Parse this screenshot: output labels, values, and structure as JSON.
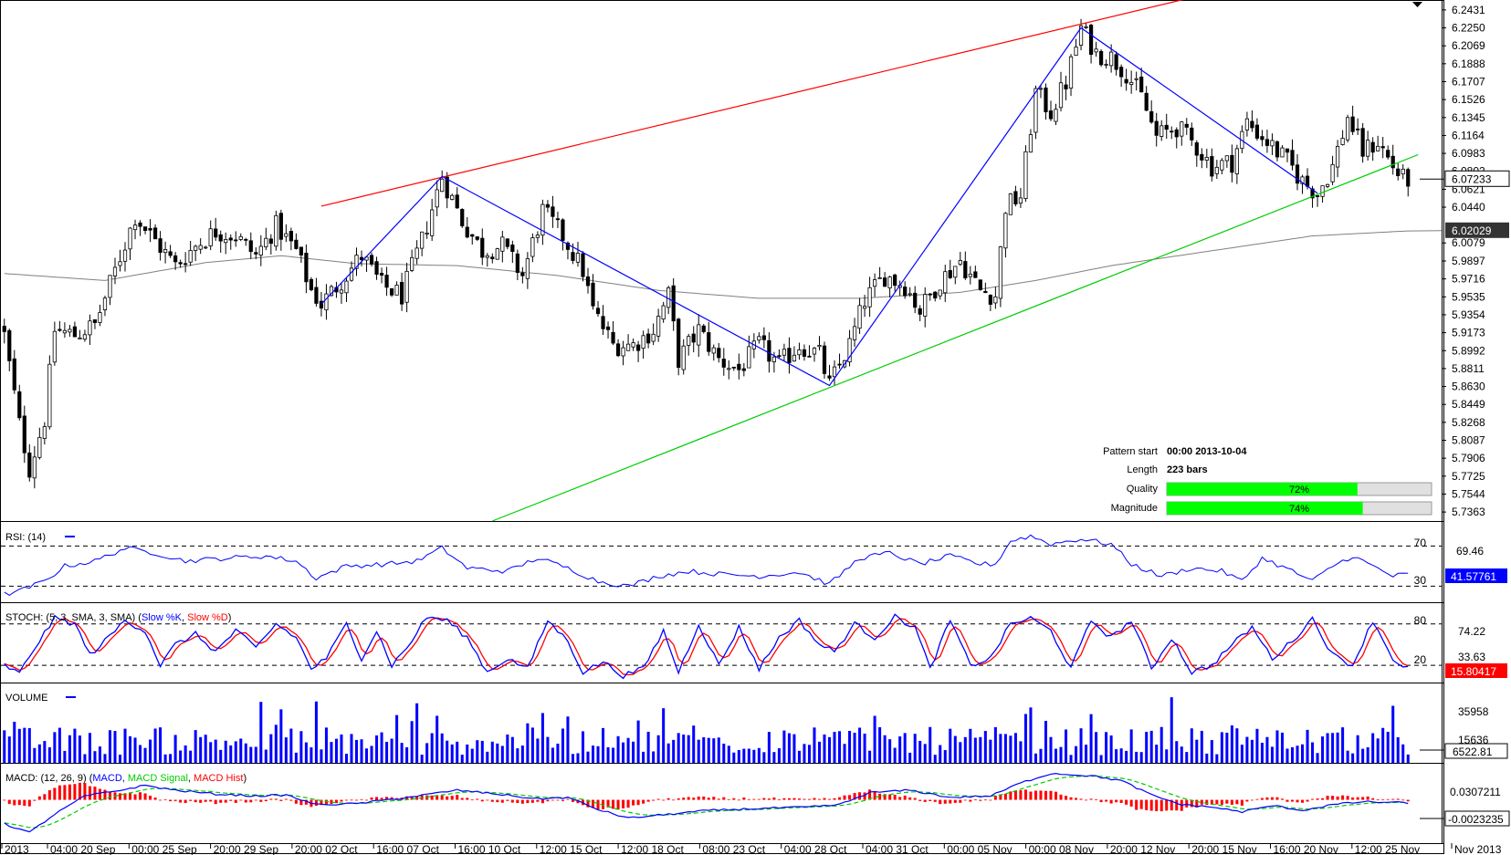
{
  "chart_data": {
    "type": "candlestick",
    "colors": {
      "candle_up": "#ffffff",
      "candle_down": "#000000",
      "moving_average": "#808080",
      "zigzag": "#0000ff",
      "resistance": "#ff0000",
      "support": "#00cc00",
      "rsi": "#0000ff",
      "stoch_k": "#0000ff",
      "stoch_d": "#ff0000",
      "volume": "#0000ff",
      "macd": "#0000ff",
      "macd_signal": "#00cc00",
      "macd_hist": "#ff0000",
      "bar_fill": "#00ff00"
    },
    "price_axis": {
      "range": [
        5.7272,
        6.2522
      ],
      "ticks": [
        "6.2431",
        "6.2250",
        "6.2069",
        "6.1888",
        "6.1707",
        "6.1526",
        "6.1345",
        "6.1164",
        "6.0983",
        "6.0621",
        "6.0440",
        "6.0079",
        "5.9897",
        "5.9716",
        "5.9535",
        "5.9354",
        "5.9173",
        "5.8992",
        "5.8811",
        "5.8630",
        "5.8449",
        "5.8268",
        "5.8087",
        "5.7906",
        "5.7725",
        "5.7544",
        "5.7363"
      ],
      "partial_tick": "6.0802",
      "current_price_label": "6.07233",
      "current_price": 6.07233,
      "ma_label": "6.02029",
      "ma_value": 6.02029
    },
    "x_tick_labels": [
      "2013",
      "04:00 20 Sep",
      "00:00 25 Sep",
      "20:00 29 Sep",
      "20:00 02 Oct",
      "16:00 07 Oct",
      "16:00 10 Oct",
      "12:00 15 Oct",
      "12:00 18 Oct",
      "08:00 23 Oct",
      "04:00 28 Oct",
      "04:00 31 Oct",
      "00:00 05 Nov",
      "00:00 08 Nov",
      "20:00 12 Nov",
      "20:00 15 Nov",
      "16:00 20 Nov",
      "12:00 25 Nov",
      "Nov 2013"
    ],
    "pattern_info": {
      "pattern_start_label": "Pattern start",
      "pattern_start_value": "00:00 2013-10-04",
      "length_label": "Length",
      "length_value": "223 bars",
      "quality_label": "Quality",
      "quality_value": "72%",
      "quality_fraction": 0.72,
      "magnitude_label": "Magnitude",
      "magnitude_value": "74%",
      "magnitude_fraction": 0.74
    },
    "trendlines": {
      "resistance": [
        {
          "x": 63,
          "y": 6.045
        },
        {
          "x": 235,
          "y": 6.2544
        }
      ],
      "support": [
        {
          "x": 97,
          "y": 5.7272
        },
        {
          "x": 281,
          "y": 6.097
        }
      ]
    },
    "zigzag": [
      {
        "x": 63,
        "y": 5.946
      },
      {
        "x": 87,
        "y": 6.075
      },
      {
        "x": 164,
        "y": 5.864
      },
      {
        "x": 214,
        "y": 6.225
      },
      {
        "x": 261,
        "y": 6.058
      }
    ],
    "anchor_closes": [
      {
        "x": 0,
        "y": 5.915
      },
      {
        "x": 3,
        "y": 5.825
      },
      {
        "x": 5,
        "y": 5.78
      },
      {
        "x": 8,
        "y": 5.83
      },
      {
        "x": 10,
        "y": 5.92
      },
      {
        "x": 14,
        "y": 5.915
      },
      {
        "x": 18,
        "y": 5.925
      },
      {
        "x": 22,
        "y": 5.98
      },
      {
        "x": 26,
        "y": 6.035
      },
      {
        "x": 30,
        "y": 6.01
      },
      {
        "x": 34,
        "y": 5.985
      },
      {
        "x": 38,
        "y": 6.005
      },
      {
        "x": 42,
        "y": 6.02
      },
      {
        "x": 46,
        "y": 6.015
      },
      {
        "x": 50,
        "y": 5.995
      },
      {
        "x": 54,
        "y": 6.025
      },
      {
        "x": 58,
        "y": 6.0
      },
      {
        "x": 61,
        "y": 5.96
      },
      {
        "x": 63,
        "y": 5.946
      },
      {
        "x": 67,
        "y": 5.97
      },
      {
        "x": 71,
        "y": 5.995
      },
      {
        "x": 75,
        "y": 5.965
      },
      {
        "x": 79,
        "y": 5.955
      },
      {
        "x": 83,
        "y": 6.01
      },
      {
        "x": 87,
        "y": 6.075
      },
      {
        "x": 91,
        "y": 6.03
      },
      {
        "x": 95,
        "y": 6.0
      },
      {
        "x": 99,
        "y": 6.005
      },
      {
        "x": 103,
        "y": 5.975
      },
      {
        "x": 107,
        "y": 6.04
      },
      {
        "x": 111,
        "y": 6.015
      },
      {
        "x": 115,
        "y": 5.98
      },
      {
        "x": 117,
        "y": 5.94
      },
      {
        "x": 121,
        "y": 5.905
      },
      {
        "x": 125,
        "y": 5.905
      },
      {
        "x": 129,
        "y": 5.92
      },
      {
        "x": 132,
        "y": 5.955
      },
      {
        "x": 134,
        "y": 5.89
      },
      {
        "x": 138,
        "y": 5.92
      },
      {
        "x": 142,
        "y": 5.89
      },
      {
        "x": 146,
        "y": 5.88
      },
      {
        "x": 150,
        "y": 5.905
      },
      {
        "x": 154,
        "y": 5.885
      },
      {
        "x": 158,
        "y": 5.905
      },
      {
        "x": 162,
        "y": 5.895
      },
      {
        "x": 164,
        "y": 5.864
      },
      {
        "x": 168,
        "y": 5.905
      },
      {
        "x": 171,
        "y": 5.95
      },
      {
        "x": 175,
        "y": 5.975
      },
      {
        "x": 179,
        "y": 5.965
      },
      {
        "x": 182,
        "y": 5.94
      },
      {
        "x": 186,
        "y": 5.97
      },
      {
        "x": 190,
        "y": 5.99
      },
      {
        "x": 194,
        "y": 5.96
      },
      {
        "x": 197,
        "y": 5.955
      },
      {
        "x": 199,
        "y": 6.045
      },
      {
        "x": 202,
        "y": 6.055
      },
      {
        "x": 205,
        "y": 6.16
      },
      {
        "x": 208,
        "y": 6.14
      },
      {
        "x": 211,
        "y": 6.17
      },
      {
        "x": 214,
        "y": 6.225
      },
      {
        "x": 217,
        "y": 6.2
      },
      {
        "x": 220,
        "y": 6.195
      },
      {
        "x": 223,
        "y": 6.18
      },
      {
        "x": 226,
        "y": 6.155
      },
      {
        "x": 229,
        "y": 6.115
      },
      {
        "x": 233,
        "y": 6.125
      },
      {
        "x": 237,
        "y": 6.105
      },
      {
        "x": 240,
        "y": 6.085
      },
      {
        "x": 244,
        "y": 6.09
      },
      {
        "x": 247,
        "y": 6.13
      },
      {
        "x": 251,
        "y": 6.11
      },
      {
        "x": 255,
        "y": 6.09
      },
      {
        "x": 258,
        "y": 6.07
      },
      {
        "x": 261,
        "y": 6.058
      },
      {
        "x": 264,
        "y": 6.085
      },
      {
        "x": 267,
        "y": 6.135
      },
      {
        "x": 270,
        "y": 6.1
      },
      {
        "x": 273,
        "y": 6.11
      },
      {
        "x": 276,
        "y": 6.085
      },
      {
        "x": 278,
        "y": 6.0723
      }
    ],
    "ma_points": [
      {
        "x": 0,
        "y": 5.977
      },
      {
        "x": 20,
        "y": 5.97
      },
      {
        "x": 40,
        "y": 5.988
      },
      {
        "x": 55,
        "y": 5.995
      },
      {
        "x": 70,
        "y": 5.987
      },
      {
        "x": 90,
        "y": 5.985
      },
      {
        "x": 110,
        "y": 5.975
      },
      {
        "x": 130,
        "y": 5.96
      },
      {
        "x": 150,
        "y": 5.952
      },
      {
        "x": 170,
        "y": 5.952
      },
      {
        "x": 190,
        "y": 5.958
      },
      {
        "x": 205,
        "y": 5.97
      },
      {
        "x": 220,
        "y": 5.985
      },
      {
        "x": 240,
        "y": 6.0
      },
      {
        "x": 260,
        "y": 6.015
      },
      {
        "x": 280,
        "y": 6.0203
      }
    ],
    "rsi": {
      "title": "RSI: (14)",
      "range": [
        14,
        94
      ],
      "levels": [
        "70",
        "30"
      ],
      "level_values": [
        70,
        30
      ],
      "current_label": "41.57761",
      "top_label": "69.46",
      "anchors": [
        {
          "x": 0,
          "y": 22
        },
        {
          "x": 3,
          "y": 25
        },
        {
          "x": 8,
          "y": 35
        },
        {
          "x": 12,
          "y": 50
        },
        {
          "x": 18,
          "y": 55
        },
        {
          "x": 24,
          "y": 68
        },
        {
          "x": 30,
          "y": 63
        },
        {
          "x": 36,
          "y": 55
        },
        {
          "x": 44,
          "y": 58
        },
        {
          "x": 52,
          "y": 60
        },
        {
          "x": 58,
          "y": 55
        },
        {
          "x": 62,
          "y": 38
        },
        {
          "x": 68,
          "y": 50
        },
        {
          "x": 76,
          "y": 52
        },
        {
          "x": 82,
          "y": 55
        },
        {
          "x": 87,
          "y": 68
        },
        {
          "x": 92,
          "y": 48
        },
        {
          "x": 100,
          "y": 45
        },
        {
          "x": 106,
          "y": 58
        },
        {
          "x": 112,
          "y": 48
        },
        {
          "x": 118,
          "y": 35
        },
        {
          "x": 124,
          "y": 30
        },
        {
          "x": 130,
          "y": 40
        },
        {
          "x": 136,
          "y": 45
        },
        {
          "x": 142,
          "y": 42
        },
        {
          "x": 150,
          "y": 40
        },
        {
          "x": 158,
          "y": 44
        },
        {
          "x": 164,
          "y": 32
        },
        {
          "x": 170,
          "y": 58
        },
        {
          "x": 176,
          "y": 63
        },
        {
          "x": 182,
          "y": 52
        },
        {
          "x": 188,
          "y": 60
        },
        {
          "x": 194,
          "y": 52
        },
        {
          "x": 197,
          "y": 52
        },
        {
          "x": 200,
          "y": 75
        },
        {
          "x": 204,
          "y": 80
        },
        {
          "x": 208,
          "y": 72
        },
        {
          "x": 214,
          "y": 77
        },
        {
          "x": 220,
          "y": 72
        },
        {
          "x": 224,
          "y": 52
        },
        {
          "x": 230,
          "y": 40
        },
        {
          "x": 236,
          "y": 48
        },
        {
          "x": 242,
          "y": 45
        },
        {
          "x": 246,
          "y": 35
        },
        {
          "x": 250,
          "y": 58
        },
        {
          "x": 256,
          "y": 45
        },
        {
          "x": 260,
          "y": 35
        },
        {
          "x": 264,
          "y": 50
        },
        {
          "x": 268,
          "y": 60
        },
        {
          "x": 272,
          "y": 50
        },
        {
          "x": 276,
          "y": 40
        },
        {
          "x": 278,
          "y": 41.6
        }
      ]
    },
    "stoch": {
      "title": "STOCH: (5, 3, SMA, 3, SMA)",
      "legend_k": "Slow %K",
      "legend_d": "Slow %D",
      "range": [
        -5,
        110
      ],
      "levels": [
        "80",
        "20"
      ],
      "level_values": [
        80,
        20
      ],
      "current_label": "15.80417",
      "tick_labels": [
        "74.22",
        "33.63"
      ],
      "tick_values": [
        74.22,
        33.63
      ],
      "anchors": [
        {
          "x": 0,
          "y": 20
        },
        {
          "x": 3,
          "y": 8
        },
        {
          "x": 6,
          "y": 45
        },
        {
          "x": 10,
          "y": 88
        },
        {
          "x": 14,
          "y": 80
        },
        {
          "x": 17,
          "y": 35
        },
        {
          "x": 20,
          "y": 55
        },
        {
          "x": 24,
          "y": 85
        },
        {
          "x": 28,
          "y": 70
        },
        {
          "x": 31,
          "y": 20
        },
        {
          "x": 34,
          "y": 50
        },
        {
          "x": 38,
          "y": 65
        },
        {
          "x": 42,
          "y": 40
        },
        {
          "x": 46,
          "y": 70
        },
        {
          "x": 50,
          "y": 45
        },
        {
          "x": 54,
          "y": 80
        },
        {
          "x": 58,
          "y": 60
        },
        {
          "x": 61,
          "y": 15
        },
        {
          "x": 64,
          "y": 30
        },
        {
          "x": 68,
          "y": 80
        },
        {
          "x": 71,
          "y": 30
        },
        {
          "x": 74,
          "y": 70
        },
        {
          "x": 77,
          "y": 20
        },
        {
          "x": 80,
          "y": 45
        },
        {
          "x": 84,
          "y": 90
        },
        {
          "x": 88,
          "y": 85
        },
        {
          "x": 92,
          "y": 60
        },
        {
          "x": 96,
          "y": 10
        },
        {
          "x": 100,
          "y": 30
        },
        {
          "x": 104,
          "y": 15
        },
        {
          "x": 108,
          "y": 85
        },
        {
          "x": 112,
          "y": 55
        },
        {
          "x": 115,
          "y": 10
        },
        {
          "x": 119,
          "y": 25
        },
        {
          "x": 123,
          "y": 5
        },
        {
          "x": 127,
          "y": 15
        },
        {
          "x": 131,
          "y": 70
        },
        {
          "x": 134,
          "y": 10
        },
        {
          "x": 138,
          "y": 80
        },
        {
          "x": 142,
          "y": 20
        },
        {
          "x": 146,
          "y": 75
        },
        {
          "x": 150,
          "y": 15
        },
        {
          "x": 154,
          "y": 60
        },
        {
          "x": 158,
          "y": 85
        },
        {
          "x": 162,
          "y": 50
        },
        {
          "x": 165,
          "y": 40
        },
        {
          "x": 169,
          "y": 80
        },
        {
          "x": 173,
          "y": 60
        },
        {
          "x": 177,
          "y": 90
        },
        {
          "x": 181,
          "y": 75
        },
        {
          "x": 184,
          "y": 15
        },
        {
          "x": 188,
          "y": 85
        },
        {
          "x": 192,
          "y": 20
        },
        {
          "x": 196,
          "y": 30
        },
        {
          "x": 200,
          "y": 80
        },
        {
          "x": 204,
          "y": 88
        },
        {
          "x": 208,
          "y": 70
        },
        {
          "x": 212,
          "y": 15
        },
        {
          "x": 216,
          "y": 85
        },
        {
          "x": 220,
          "y": 60
        },
        {
          "x": 224,
          "y": 85
        },
        {
          "x": 228,
          "y": 15
        },
        {
          "x": 232,
          "y": 60
        },
        {
          "x": 236,
          "y": 10
        },
        {
          "x": 240,
          "y": 20
        },
        {
          "x": 244,
          "y": 50
        },
        {
          "x": 248,
          "y": 75
        },
        {
          "x": 252,
          "y": 30
        },
        {
          "x": 256,
          "y": 55
        },
        {
          "x": 260,
          "y": 88
        },
        {
          "x": 264,
          "y": 35
        },
        {
          "x": 268,
          "y": 20
        },
        {
          "x": 272,
          "y": 85
        },
        {
          "x": 276,
          "y": 30
        },
        {
          "x": 278,
          "y": 15.8
        }
      ]
    },
    "volume": {
      "title": "VOLUME",
      "range": [
        0,
        62000
      ],
      "tick_labels": [
        "35958",
        "15636"
      ],
      "tick_values": [
        35958,
        15636
      ],
      "current_label": "6522.81",
      "current_value": 6522.81
    },
    "macd": {
      "title": "MACD: (12, 26, 9)",
      "legend_macd": "MACD",
      "legend_signal": "MACD Signal",
      "legend_hist": "MACD Hist",
      "range": [
        -0.09,
        0.075
      ],
      "tick_label": "0.0307211",
      "tick_value": 0.0307211,
      "current_label": "-0.0023235",
      "current_value": -0.0023235,
      "anchors": [
        {
          "x": 0,
          "y": -0.05
        },
        {
          "x": 5,
          "y": -0.068
        },
        {
          "x": 10,
          "y": -0.03
        },
        {
          "x": 16,
          "y": 0.008
        },
        {
          "x": 22,
          "y": 0.018
        },
        {
          "x": 28,
          "y": 0.03
        },
        {
          "x": 34,
          "y": 0.02
        },
        {
          "x": 42,
          "y": 0.012
        },
        {
          "x": 50,
          "y": 0.008
        },
        {
          "x": 56,
          "y": 0.01
        },
        {
          "x": 62,
          "y": -0.01
        },
        {
          "x": 70,
          "y": -0.008
        },
        {
          "x": 80,
          "y": 0.005
        },
        {
          "x": 90,
          "y": 0.02
        },
        {
          "x": 98,
          "y": 0.012
        },
        {
          "x": 106,
          "y": 0.002
        },
        {
          "x": 112,
          "y": 0.005
        },
        {
          "x": 118,
          "y": -0.02
        },
        {
          "x": 124,
          "y": -0.038
        },
        {
          "x": 132,
          "y": -0.03
        },
        {
          "x": 140,
          "y": -0.022
        },
        {
          "x": 150,
          "y": -0.018
        },
        {
          "x": 160,
          "y": -0.015
        },
        {
          "x": 166,
          "y": -0.01
        },
        {
          "x": 172,
          "y": 0.015
        },
        {
          "x": 180,
          "y": 0.02
        },
        {
          "x": 188,
          "y": 0.005
        },
        {
          "x": 196,
          "y": 0.008
        },
        {
          "x": 202,
          "y": 0.035
        },
        {
          "x": 208,
          "y": 0.055
        },
        {
          "x": 216,
          "y": 0.05
        },
        {
          "x": 222,
          "y": 0.04
        },
        {
          "x": 228,
          "y": 0.01
        },
        {
          "x": 234,
          "y": -0.01
        },
        {
          "x": 240,
          "y": -0.015
        },
        {
          "x": 246,
          "y": -0.025
        },
        {
          "x": 252,
          "y": -0.012
        },
        {
          "x": 258,
          "y": -0.022
        },
        {
          "x": 264,
          "y": -0.01
        },
        {
          "x": 270,
          "y": -0.004
        },
        {
          "x": 278,
          "y": -0.006
        }
      ]
    }
  }
}
